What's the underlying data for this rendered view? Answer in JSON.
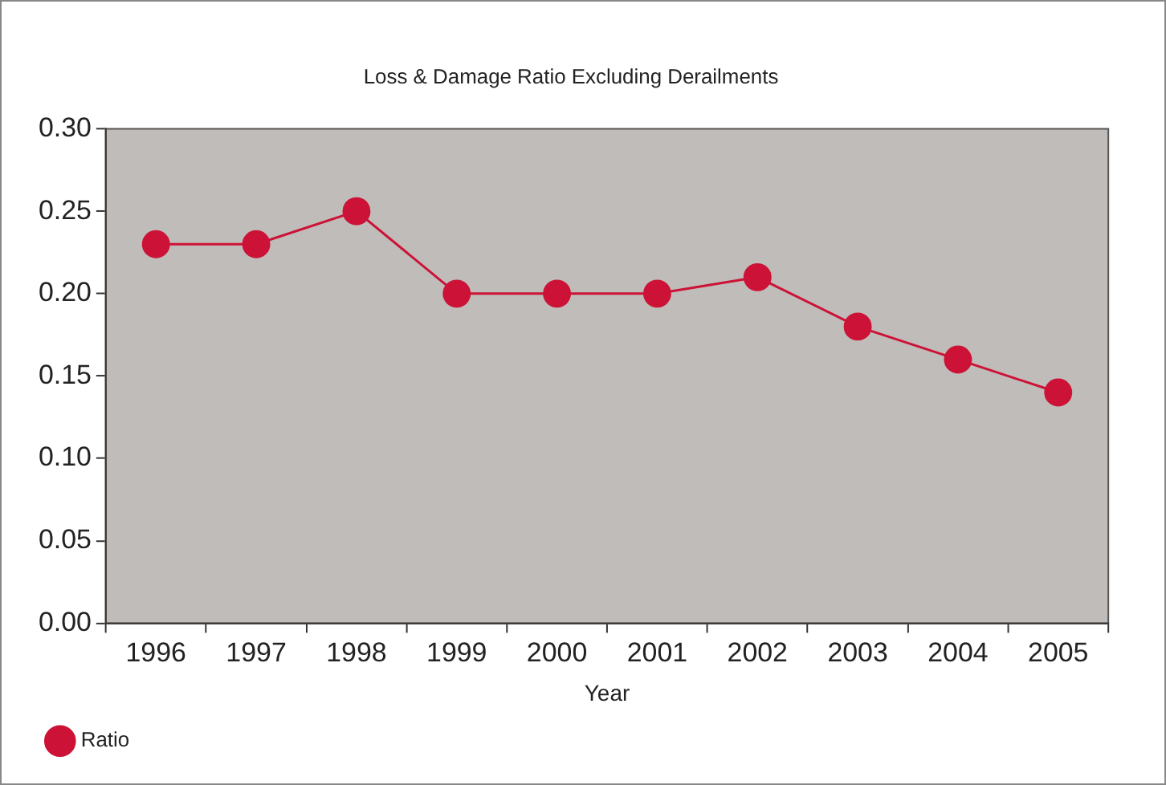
{
  "chart_data": {
    "type": "line",
    "title": "Loss & Damage Ratio Excluding Derailments",
    "xlabel": "Year",
    "categories": [
      "1996",
      "1997",
      "1998",
      "1999",
      "2000",
      "2001",
      "2002",
      "2003",
      "2004",
      "2005"
    ],
    "series": [
      {
        "name": "Ratio",
        "color": "#cc1236",
        "values": [
          0.23,
          0.23,
          0.25,
          0.2,
          0.2,
          0.2,
          0.21,
          0.18,
          0.16,
          0.14
        ]
      }
    ],
    "ylim": [
      0,
      0.3
    ],
    "yticks": [
      {
        "value": 0,
        "label": "0.00"
      },
      {
        "value": 0.05,
        "label": "0.05"
      },
      {
        "value": 0.1,
        "label": "0.10"
      },
      {
        "value": 0.15,
        "label": "0.15"
      },
      {
        "value": 0.2,
        "label": "0.20"
      },
      {
        "value": 0.25,
        "label": "0.25"
      },
      {
        "value": 0.3,
        "label": "0.30"
      }
    ],
    "grid": false,
    "legend": "bottom left",
    "marker": "circle",
    "line_style": "solid"
  }
}
